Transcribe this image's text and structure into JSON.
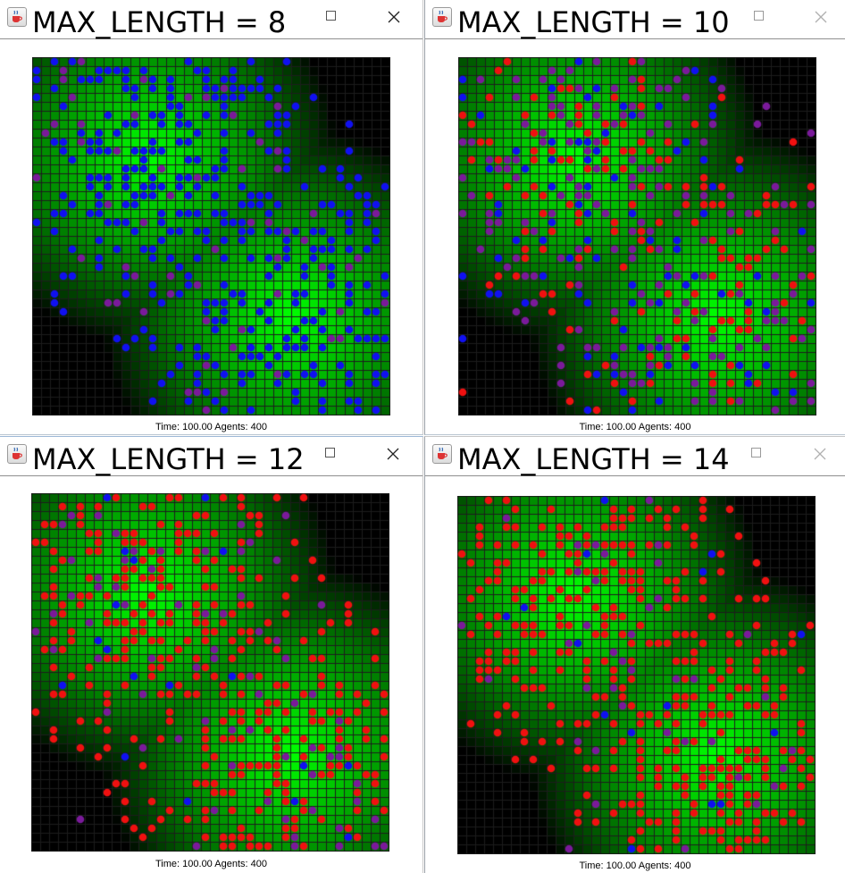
{
  "windows": [
    {
      "title": "MAX_LENGTH = 8",
      "time_label": "Time:",
      "time": "100.00",
      "agents_label": "Agents:",
      "agents": "400",
      "dominant_agent_color": "#1010f0"
    },
    {
      "title": "MAX_LENGTH = 10",
      "time_label": "Time:",
      "time": "100.00",
      "agents_label": "Agents:",
      "agents": "400",
      "dominant_agent_color": "#7a1a9a"
    },
    {
      "title": "MAX_LENGTH = 12",
      "time_label": "Time:",
      "time": "100.00",
      "agents_label": "Agents:",
      "agents": "400",
      "dominant_agent_color": "#f01010"
    },
    {
      "title": "MAX_LENGTH = 14",
      "time_label": "Time:",
      "time": "100.00",
      "agents_label": "Agents:",
      "agents": "400",
      "dominant_agent_color": "#f01010"
    }
  ],
  "grid": {
    "cells": 40,
    "agents_per_world": 400
  },
  "colors": {
    "sugar_peak": "#00ff00",
    "empty_patch": "#000000",
    "grid_line": "#1c1c1c",
    "agent_blue": "#1010f0",
    "agent_purple": "#7a1a9a",
    "agent_red": "#f01010"
  },
  "icons": {
    "app": "java-coffee-cup-icon",
    "maximize": "maximize-icon",
    "close": "close-icon"
  }
}
